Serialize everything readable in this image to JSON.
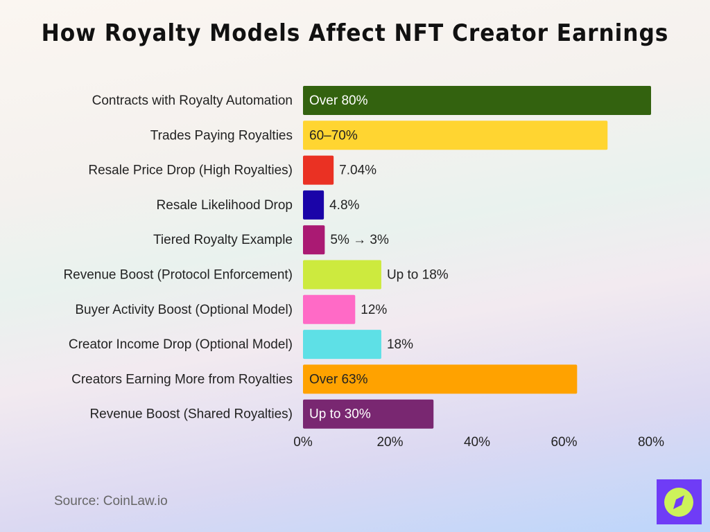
{
  "chart_data": {
    "type": "bar",
    "orientation": "horizontal",
    "title": "How Royalty Models Affect NFT Creator Earnings",
    "categories": [
      "Contracts with Royalty Automation",
      "Trades Paying Royalties",
      "Resale Price Drop (High Royalties)",
      "Resale Likelihood Drop",
      "Tiered Royalty Example",
      "Revenue Boost (Protocol Enforcement)",
      "Buyer Activity Boost (Optional Model)",
      "Creator Income Drop (Optional Model)",
      "Creators Earning More from Royalties",
      "Revenue Boost (Shared Royalties)"
    ],
    "values": [
      80,
      70,
      7.04,
      4.8,
      5,
      18,
      12,
      18,
      63,
      30
    ],
    "data_labels": [
      "Over 80%",
      "60–70%",
      "7.04%",
      "4.8%",
      "5% → 3%",
      "Up to 18%",
      "12%",
      "18%",
      "Over 63%",
      "Up to 30%"
    ],
    "colors": [
      "#33620f",
      "#ffd531",
      "#ea3123",
      "#1a04a8",
      "#aa1a73",
      "#cdea3e",
      "#ff6ac6",
      "#5ee0e6",
      "#ffa200",
      "#792771"
    ],
    "xlim": [
      0,
      80
    ],
    "xticks": [
      "0%",
      "20%",
      "40%",
      "60%",
      "80%"
    ],
    "xlabel": "",
    "ylabel": "",
    "grid": false
  },
  "source": "Source: CoinLaw.io",
  "logo": {
    "icon": "compass-icon",
    "background": "#6f3cf6",
    "accent": "#cdf25a"
  }
}
